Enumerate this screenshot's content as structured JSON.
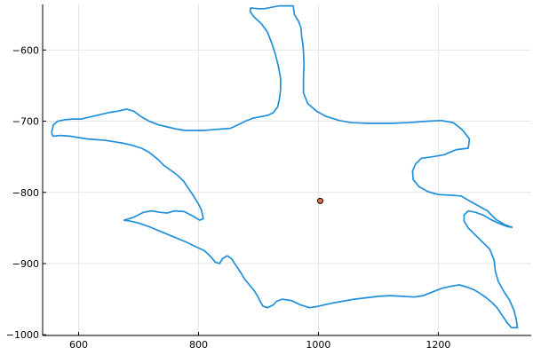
{
  "chart_data": {
    "type": "line",
    "title": "",
    "xlabel": "",
    "ylabel": "",
    "xlim": [
      540,
      1355
    ],
    "ylim": [
      -1001,
      -536
    ],
    "xticks": [
      600,
      800,
      1000,
      1200
    ],
    "yticks": [
      -600,
      -700,
      -800,
      -900,
      -1000
    ],
    "grid": true,
    "legend": "none",
    "colors": {
      "outline": "#1f8fdb",
      "marker_fill": "#e2713a",
      "marker_edge": "#000000"
    },
    "series": [
      {
        "type": "line",
        "closed": true,
        "points": [
          [
            935,
            -538
          ],
          [
            958,
            -538
          ],
          [
            960,
            -550
          ],
          [
            967,
            -560
          ],
          [
            971,
            -569
          ],
          [
            972,
            -580
          ],
          [
            974,
            -592
          ],
          [
            975,
            -602
          ],
          [
            976,
            -620
          ],
          [
            975,
            -640
          ],
          [
            975,
            -660
          ],
          [
            982,
            -675
          ],
          [
            997,
            -686
          ],
          [
            1012,
            -693
          ],
          [
            1035,
            -699
          ],
          [
            1055,
            -702
          ],
          [
            1085,
            -703
          ],
          [
            1120,
            -703
          ],
          [
            1150,
            -702
          ],
          [
            1180,
            -700
          ],
          [
            1205,
            -699
          ],
          [
            1225,
            -702
          ],
          [
            1240,
            -712
          ],
          [
            1252,
            -725
          ],
          [
            1250,
            -738
          ],
          [
            1230,
            -740
          ],
          [
            1210,
            -747
          ],
          [
            1190,
            -750
          ],
          [
            1172,
            -752
          ],
          [
            1162,
            -760
          ],
          [
            1157,
            -770
          ],
          [
            1158,
            -782
          ],
          [
            1168,
            -792
          ],
          [
            1183,
            -799
          ],
          [
            1200,
            -803
          ],
          [
            1222,
            -804
          ],
          [
            1238,
            -805
          ],
          [
            1252,
            -812
          ],
          [
            1265,
            -818
          ],
          [
            1282,
            -826
          ],
          [
            1296,
            -838
          ],
          [
            1310,
            -845
          ],
          [
            1323,
            -849
          ],
          [
            1315,
            -848
          ],
          [
            1300,
            -843
          ],
          [
            1287,
            -838
          ],
          [
            1275,
            -832
          ],
          [
            1262,
            -828
          ],
          [
            1250,
            -826
          ],
          [
            1243,
            -832
          ],
          [
            1243,
            -840
          ],
          [
            1250,
            -850
          ],
          [
            1262,
            -860
          ],
          [
            1274,
            -870
          ],
          [
            1286,
            -880
          ],
          [
            1293,
            -895
          ],
          [
            1295,
            -910
          ],
          [
            1300,
            -925
          ],
          [
            1310,
            -940
          ],
          [
            1318,
            -950
          ],
          [
            1326,
            -965
          ],
          [
            1330,
            -978
          ],
          [
            1332,
            -990
          ],
          [
            1322,
            -990
          ],
          [
            1314,
            -982
          ],
          [
            1306,
            -972
          ],
          [
            1298,
            -962
          ],
          [
            1290,
            -955
          ],
          [
            1280,
            -948
          ],
          [
            1270,
            -942
          ],
          [
            1260,
            -937
          ],
          [
            1248,
            -933
          ],
          [
            1235,
            -930
          ],
          [
            1220,
            -932
          ],
          [
            1205,
            -935
          ],
          [
            1190,
            -940
          ],
          [
            1175,
            -945
          ],
          [
            1160,
            -947
          ],
          [
            1140,
            -946
          ],
          [
            1120,
            -945
          ],
          [
            1100,
            -946
          ],
          [
            1080,
            -948
          ],
          [
            1060,
            -950
          ],
          [
            1040,
            -953
          ],
          [
            1020,
            -956
          ],
          [
            1000,
            -960
          ],
          [
            985,
            -962
          ],
          [
            970,
            -958
          ],
          [
            955,
            -952
          ],
          [
            940,
            -950
          ],
          [
            930,
            -953
          ],
          [
            925,
            -958
          ],
          [
            915,
            -962
          ],
          [
            908,
            -960
          ],
          [
            904,
            -955
          ],
          [
            900,
            -948
          ],
          [
            893,
            -938
          ],
          [
            885,
            -930
          ],
          [
            877,
            -922
          ],
          [
            870,
            -912
          ],
          [
            862,
            -902
          ],
          [
            855,
            -893
          ],
          [
            848,
            -889
          ],
          [
            840,
            -893
          ],
          [
            835,
            -900
          ],
          [
            828,
            -898
          ],
          [
            820,
            -890
          ],
          [
            810,
            -882
          ],
          [
            797,
            -877
          ],
          [
            780,
            -870
          ],
          [
            760,
            -863
          ],
          [
            740,
            -856
          ],
          [
            720,
            -849
          ],
          [
            700,
            -843
          ],
          [
            685,
            -840
          ],
          [
            676,
            -839
          ],
          [
            692,
            -835
          ],
          [
            708,
            -828
          ],
          [
            722,
            -826
          ],
          [
            735,
            -828
          ],
          [
            748,
            -829
          ],
          [
            760,
            -826
          ],
          [
            776,
            -827
          ],
          [
            792,
            -834
          ],
          [
            802,
            -839
          ],
          [
            808,
            -837
          ],
          [
            805,
            -825
          ],
          [
            799,
            -815
          ],
          [
            791,
            -804
          ],
          [
            782,
            -793
          ],
          [
            775,
            -784
          ],
          [
            765,
            -776
          ],
          [
            752,
            -768
          ],
          [
            742,
            -762
          ],
          [
            733,
            -754
          ],
          [
            718,
            -744
          ],
          [
            705,
            -738
          ],
          [
            690,
            -734
          ],
          [
            675,
            -731
          ],
          [
            660,
            -729
          ],
          [
            645,
            -727
          ],
          [
            630,
            -726
          ],
          [
            615,
            -725
          ],
          [
            600,
            -723
          ],
          [
            585,
            -721
          ],
          [
            570,
            -720
          ],
          [
            557,
            -721
          ],
          [
            555,
            -716
          ],
          [
            558,
            -705
          ],
          [
            565,
            -700
          ],
          [
            577,
            -698
          ],
          [
            590,
            -697
          ],
          [
            605,
            -697
          ],
          [
            620,
            -694
          ],
          [
            635,
            -691
          ],
          [
            650,
            -688
          ],
          [
            665,
            -686
          ],
          [
            680,
            -683
          ],
          [
            692,
            -686
          ],
          [
            705,
            -694
          ],
          [
            718,
            -700
          ],
          [
            733,
            -705
          ],
          [
            748,
            -708
          ],
          [
            763,
            -711
          ],
          [
            778,
            -713
          ],
          [
            793,
            -713
          ],
          [
            808,
            -713
          ],
          [
            823,
            -712
          ],
          [
            838,
            -711
          ],
          [
            853,
            -710
          ],
          [
            866,
            -705
          ],
          [
            878,
            -700
          ],
          [
            890,
            -696
          ],
          [
            902,
            -694
          ],
          [
            915,
            -692
          ],
          [
            925,
            -688
          ],
          [
            932,
            -680
          ],
          [
            935,
            -668
          ],
          [
            937,
            -655
          ],
          [
            937,
            -640
          ],
          [
            933,
            -622
          ],
          [
            928,
            -605
          ],
          [
            922,
            -590
          ],
          [
            915,
            -575
          ],
          [
            905,
            -563
          ],
          [
            893,
            -554
          ],
          [
            886,
            -546
          ],
          [
            887,
            -541
          ],
          [
            900,
            -542
          ],
          [
            910,
            -542
          ],
          [
            922,
            -540
          ]
        ]
      },
      {
        "type": "scatter",
        "points": [
          [
            1003,
            -812
          ]
        ]
      }
    ]
  }
}
